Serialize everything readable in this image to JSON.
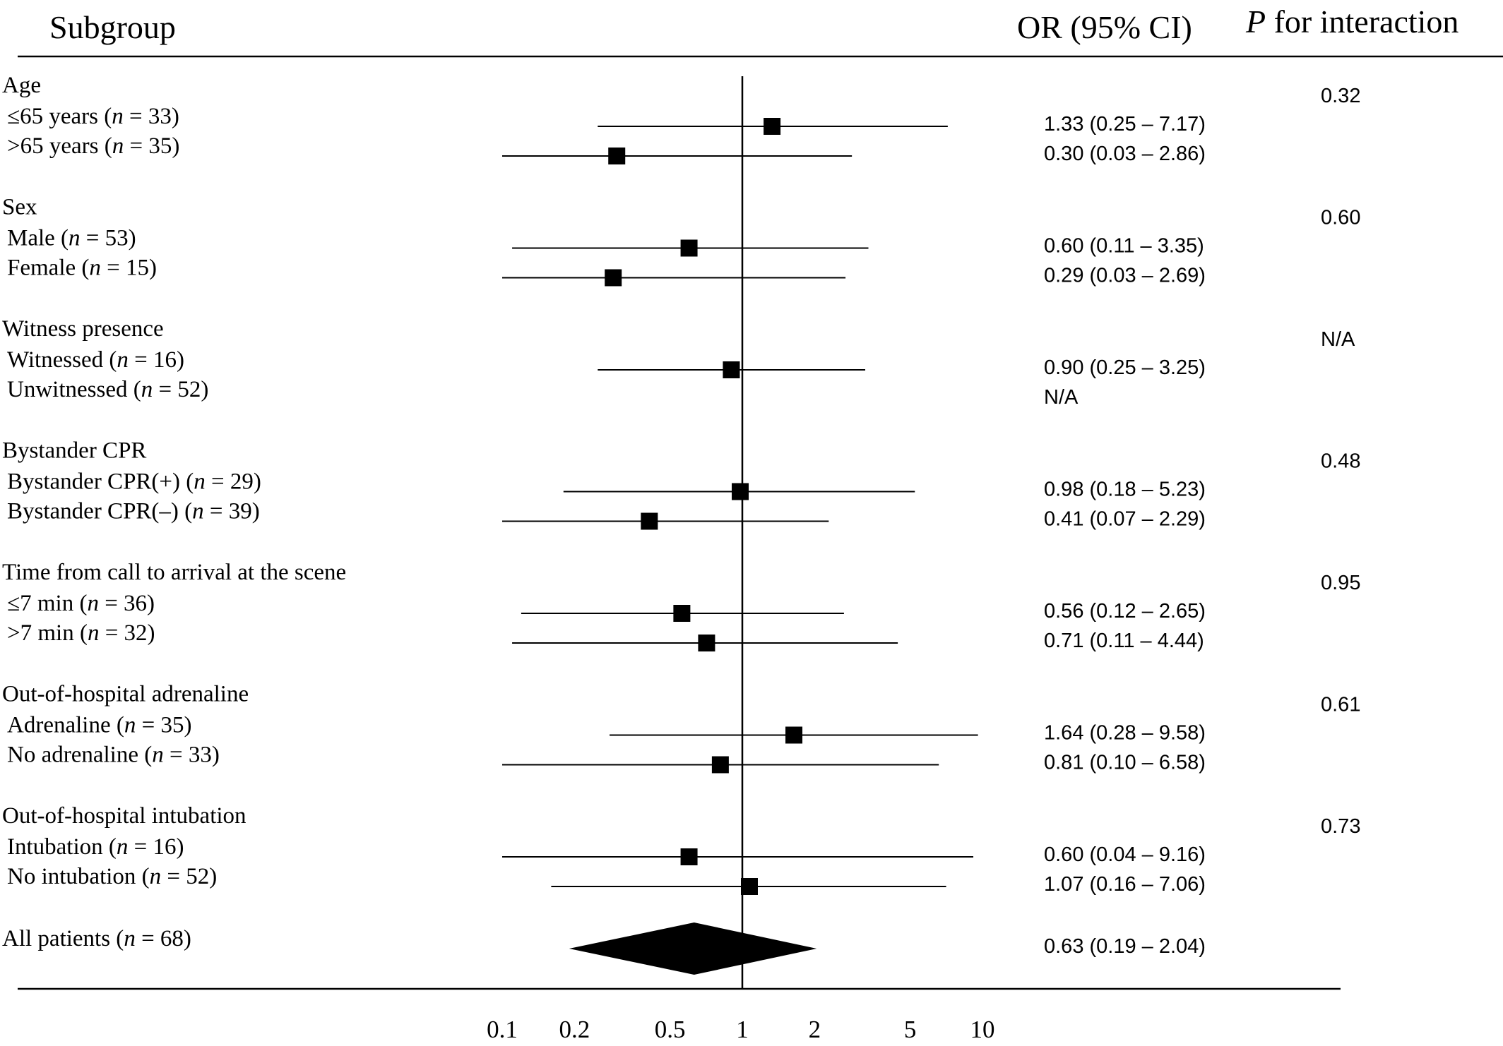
{
  "header": {
    "subgroup": "Subgroup",
    "or_ci": "OR (95% CI)",
    "p_italic": "P",
    "p_rest": " for interaction"
  },
  "chart_data": {
    "type": "forest",
    "x_scale": "log",
    "xlim": [
      0.1,
      10
    ],
    "reference_line": 1,
    "x_ticks": [
      0.1,
      0.2,
      0.5,
      1,
      2,
      5,
      10
    ],
    "x_tick_labels": [
      "0.1",
      "0.2",
      "0.5",
      "1",
      "2",
      "5",
      "10"
    ],
    "groups": [
      {
        "label": "Age",
        "p_interaction": "0.32",
        "rows": [
          {
            "label": [
              [
                "≤65 years (",
                ""
              ],
              [
                "n",
                "i"
              ],
              [
                " = 33)",
                ""
              ]
            ],
            "or": 1.33,
            "lo": 0.25,
            "hi": 7.17,
            "text": "1.33 (0.25 – 7.17)"
          },
          {
            "label": [
              [
                ">65 years (",
                ""
              ],
              [
                "n",
                "i"
              ],
              [
                " = 35)",
                ""
              ]
            ],
            "or": 0.3,
            "lo": 0.03,
            "hi": 2.86,
            "text": "0.30 (0.03 – 2.86)"
          }
        ]
      },
      {
        "label": "Sex",
        "p_interaction": "0.60",
        "rows": [
          {
            "label": [
              [
                "Male (",
                ""
              ],
              [
                "n",
                "i"
              ],
              [
                " = 53)",
                ""
              ]
            ],
            "or": 0.6,
            "lo": 0.11,
            "hi": 3.35,
            "text": "0.60 (0.11 – 3.35)"
          },
          {
            "label": [
              [
                "Female (",
                ""
              ],
              [
                "n",
                "i"
              ],
              [
                " = 15)",
                ""
              ]
            ],
            "or": 0.29,
            "lo": 0.03,
            "hi": 2.69,
            "text": "0.29 (0.03 – 2.69)"
          }
        ]
      },
      {
        "label": "Witness presence",
        "p_interaction": "N/A",
        "rows": [
          {
            "label": [
              [
                "Witnessed (",
                ""
              ],
              [
                "n",
                "i"
              ],
              [
                " = 16)",
                ""
              ]
            ],
            "or": 0.9,
            "lo": 0.25,
            "hi": 3.25,
            "text": "0.90 (0.25 – 3.25)"
          },
          {
            "label": [
              [
                "Unwitnessed (",
                ""
              ],
              [
                "n",
                "i"
              ],
              [
                " = 52)",
                ""
              ]
            ],
            "or": null,
            "lo": null,
            "hi": null,
            "text": "N/A"
          }
        ]
      },
      {
        "label": "Bystander CPR",
        "p_interaction": "0.48",
        "rows": [
          {
            "label": [
              [
                "Bystander CPR(+) (",
                ""
              ],
              [
                "n",
                "i"
              ],
              [
                " = 29)",
                ""
              ]
            ],
            "or": 0.98,
            "lo": 0.18,
            "hi": 5.23,
            "text": "0.98 (0.18 – 5.23)"
          },
          {
            "label": [
              [
                "Bystander CPR(–) (",
                ""
              ],
              [
                "n",
                "i"
              ],
              [
                " = 39)",
                ""
              ]
            ],
            "or": 0.41,
            "lo": 0.07,
            "hi": 2.29,
            "text": "0.41 (0.07 – 2.29)"
          }
        ]
      },
      {
        "label": "Time from call to arrival at the scene",
        "p_interaction": "0.95",
        "rows": [
          {
            "label": [
              [
                "≤7 min (",
                ""
              ],
              [
                "n",
                "i"
              ],
              [
                " = 36)",
                ""
              ]
            ],
            "or": 0.56,
            "lo": 0.12,
            "hi": 2.65,
            "text": "0.56 (0.12 – 2.65)"
          },
          {
            "label": [
              [
                ">7 min (",
                ""
              ],
              [
                "n",
                "i"
              ],
              [
                " = 32)",
                ""
              ]
            ],
            "or": 0.71,
            "lo": 0.11,
            "hi": 4.44,
            "text": "0.71 (0.11 – 4.44)"
          }
        ]
      },
      {
        "label": "Out-of-hospital adrenaline",
        "p_interaction": "0.61",
        "rows": [
          {
            "label": [
              [
                "Adrenaline (",
                ""
              ],
              [
                "n",
                "i"
              ],
              [
                " = 35)",
                ""
              ]
            ],
            "or": 1.64,
            "lo": 0.28,
            "hi": 9.58,
            "text": "1.64 (0.28 – 9.58)"
          },
          {
            "label": [
              [
                "No adrenaline (",
                ""
              ],
              [
                "n",
                "i"
              ],
              [
                " = 33)",
                ""
              ]
            ],
            "or": 0.81,
            "lo": 0.1,
            "hi": 6.58,
            "text": "0.81 (0.10 – 6.58)"
          }
        ]
      },
      {
        "label": "Out-of-hospital intubation",
        "p_interaction": "0.73",
        "rows": [
          {
            "label": [
              [
                "Intubation (",
                ""
              ],
              [
                "n",
                "i"
              ],
              [
                " = 16)",
                ""
              ]
            ],
            "or": 0.6,
            "lo": 0.04,
            "hi": 9.16,
            "text": "0.60 (0.04 – 9.16)"
          },
          {
            "label": [
              [
                "No intubation (",
                ""
              ],
              [
                "n",
                "i"
              ],
              [
                " = 52)",
                ""
              ]
            ],
            "or": 1.07,
            "lo": 0.16,
            "hi": 7.06,
            "text": "1.07 (0.16 – 7.06)"
          }
        ]
      }
    ],
    "overall": {
      "label": [
        [
          "All patients (",
          ""
        ],
        [
          "n",
          "i"
        ],
        [
          " = 68)",
          ""
        ]
      ],
      "or": 0.63,
      "lo": 0.19,
      "hi": 2.04,
      "text": "0.63 (0.19 – 2.04)"
    }
  }
}
